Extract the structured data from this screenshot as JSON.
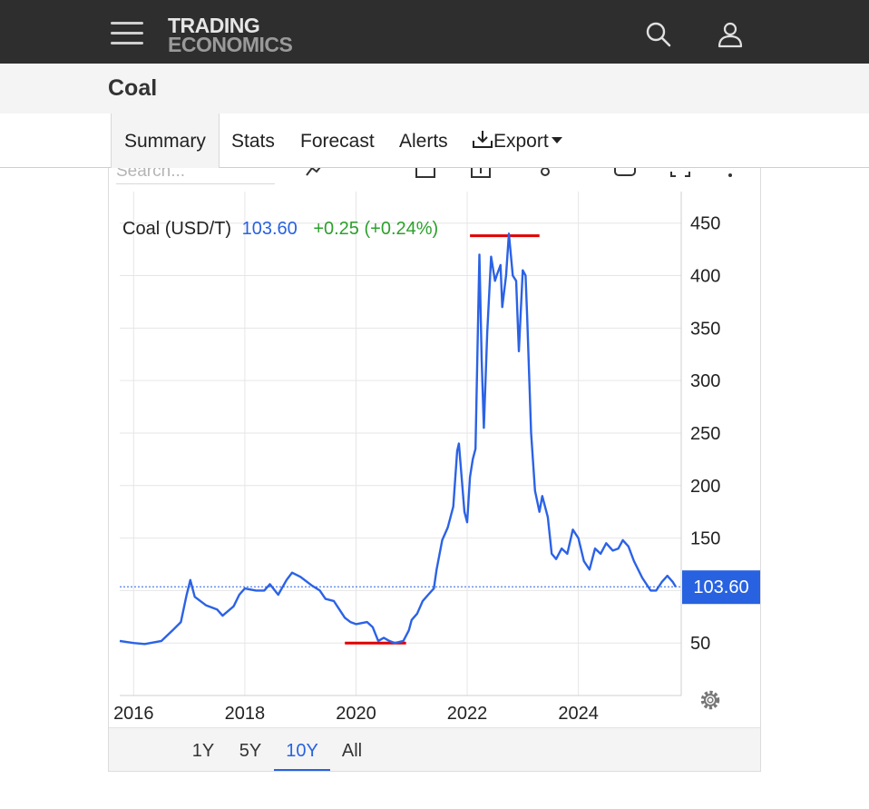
{
  "brand": {
    "line1": "TRADING",
    "line2": "ECONOMICS"
  },
  "header": {
    "menu_icon": "hamburger-menu-icon",
    "search_icon": "search-icon",
    "account_icon": "user-icon"
  },
  "page": {
    "title": "Coal"
  },
  "tabs": [
    {
      "label": "Summary",
      "active": true
    },
    {
      "label": "Stats"
    },
    {
      "label": "Forecast"
    },
    {
      "label": "Alerts"
    },
    {
      "label": "Export",
      "icon": "download-icon",
      "dropdown": true
    }
  ],
  "toolbar": {
    "search_placeholder": "Search..."
  },
  "legend": {
    "name": "Coal (USD/T)",
    "price": "103.60",
    "change": "+0.25 (+0.24%)"
  },
  "colors": {
    "line": "#2b62e6",
    "accent_blue": "#2862e0",
    "positive": "#2ca02c",
    "marker": "#e00000",
    "navbar": "#2e2e2e"
  },
  "range_selector": {
    "options": [
      "1Y",
      "5Y",
      "10Y",
      "All"
    ],
    "selected": "10Y"
  },
  "chart_data": {
    "type": "line",
    "series": [
      {
        "name": "Coal (USD/T)",
        "points": [
          [
            2015.75,
            52
          ],
          [
            2016.0,
            50
          ],
          [
            2016.2,
            49
          ],
          [
            2016.5,
            52
          ],
          [
            2016.7,
            62
          ],
          [
            2016.85,
            70
          ],
          [
            2016.95,
            95
          ],
          [
            2017.02,
            110
          ],
          [
            2017.1,
            94
          ],
          [
            2017.3,
            86
          ],
          [
            2017.5,
            82
          ],
          [
            2017.6,
            76
          ],
          [
            2017.8,
            85
          ],
          [
            2017.9,
            96
          ],
          [
            2018.0,
            102
          ],
          [
            2018.2,
            100
          ],
          [
            2018.35,
            100
          ],
          [
            2018.45,
            106
          ],
          [
            2018.6,
            96
          ],
          [
            2018.75,
            110
          ],
          [
            2018.85,
            117
          ],
          [
            2019.0,
            113
          ],
          [
            2019.2,
            105
          ],
          [
            2019.35,
            100
          ],
          [
            2019.45,
            92
          ],
          [
            2019.6,
            90
          ],
          [
            2019.7,
            82
          ],
          [
            2019.8,
            74
          ],
          [
            2019.9,
            70
          ],
          [
            2020.0,
            68
          ],
          [
            2020.2,
            70
          ],
          [
            2020.3,
            65
          ],
          [
            2020.4,
            52
          ],
          [
            2020.5,
            55
          ],
          [
            2020.6,
            52
          ],
          [
            2020.7,
            50
          ],
          [
            2020.85,
            52
          ],
          [
            2020.95,
            62
          ],
          [
            2021.0,
            72
          ],
          [
            2021.1,
            78
          ],
          [
            2021.2,
            90
          ],
          [
            2021.3,
            96
          ],
          [
            2021.4,
            102
          ],
          [
            2021.45,
            120
          ],
          [
            2021.55,
            148
          ],
          [
            2021.65,
            160
          ],
          [
            2021.75,
            180
          ],
          [
            2021.82,
            233
          ],
          [
            2021.85,
            240
          ],
          [
            2021.95,
            175
          ],
          [
            2022.0,
            165
          ],
          [
            2022.05,
            208
          ],
          [
            2022.1,
            225
          ],
          [
            2022.15,
            235
          ],
          [
            2022.22,
            420
          ],
          [
            2022.26,
            320
          ],
          [
            2022.3,
            255
          ],
          [
            2022.36,
            345
          ],
          [
            2022.43,
            418
          ],
          [
            2022.5,
            395
          ],
          [
            2022.53,
            400
          ],
          [
            2022.6,
            410
          ],
          [
            2022.63,
            370
          ],
          [
            2022.7,
            400
          ],
          [
            2022.75,
            440
          ],
          [
            2022.82,
            400
          ],
          [
            2022.88,
            395
          ],
          [
            2022.93,
            328
          ],
          [
            2023.0,
            405
          ],
          [
            2023.05,
            400
          ],
          [
            2023.08,
            360
          ],
          [
            2023.15,
            250
          ],
          [
            2023.22,
            195
          ],
          [
            2023.3,
            175
          ],
          [
            2023.35,
            190
          ],
          [
            2023.45,
            170
          ],
          [
            2023.52,
            135
          ],
          [
            2023.6,
            130
          ],
          [
            2023.7,
            140
          ],
          [
            2023.8,
            135
          ],
          [
            2023.9,
            158
          ],
          [
            2024.0,
            150
          ],
          [
            2024.1,
            128
          ],
          [
            2024.2,
            120
          ],
          [
            2024.3,
            140
          ],
          [
            2024.4,
            135
          ],
          [
            2024.5,
            145
          ],
          [
            2024.62,
            138
          ],
          [
            2024.72,
            140
          ],
          [
            2024.8,
            148
          ],
          [
            2024.9,
            142
          ],
          [
            2025.0,
            128
          ],
          [
            2025.15,
            112
          ],
          [
            2025.3,
            100
          ],
          [
            2025.4,
            100
          ],
          [
            2025.5,
            108
          ],
          [
            2025.6,
            114
          ],
          [
            2025.7,
            108
          ],
          [
            2025.75,
            103.6
          ]
        ]
      }
    ],
    "current_value": 103.6,
    "current_label": "103.60",
    "markers": [
      {
        "kind": "high",
        "value": 438,
        "x_from": 2022.05,
        "x_to": 2023.3
      },
      {
        "kind": "low",
        "value": 50,
        "x_from": 2019.8,
        "x_to": 2020.9
      }
    ],
    "x_ticks": [
      {
        "value": 2016,
        "label": "2016"
      },
      {
        "value": 2018,
        "label": "2018"
      },
      {
        "value": 2020,
        "label": "2020"
      },
      {
        "value": 2022,
        "label": "2022"
      },
      {
        "value": 2024,
        "label": "2024"
      }
    ],
    "y_ticks": [
      50,
      100,
      150,
      200,
      250,
      300,
      350,
      400,
      450
    ],
    "y_tick_labels": [
      "50",
      "",
      "150",
      "200",
      "250",
      "300",
      "350",
      "400",
      "450"
    ],
    "xlim": [
      2015.75,
      2025.85
    ],
    "ylim": [
      0,
      480
    ],
    "yaxis_position": "right",
    "grid": true
  }
}
